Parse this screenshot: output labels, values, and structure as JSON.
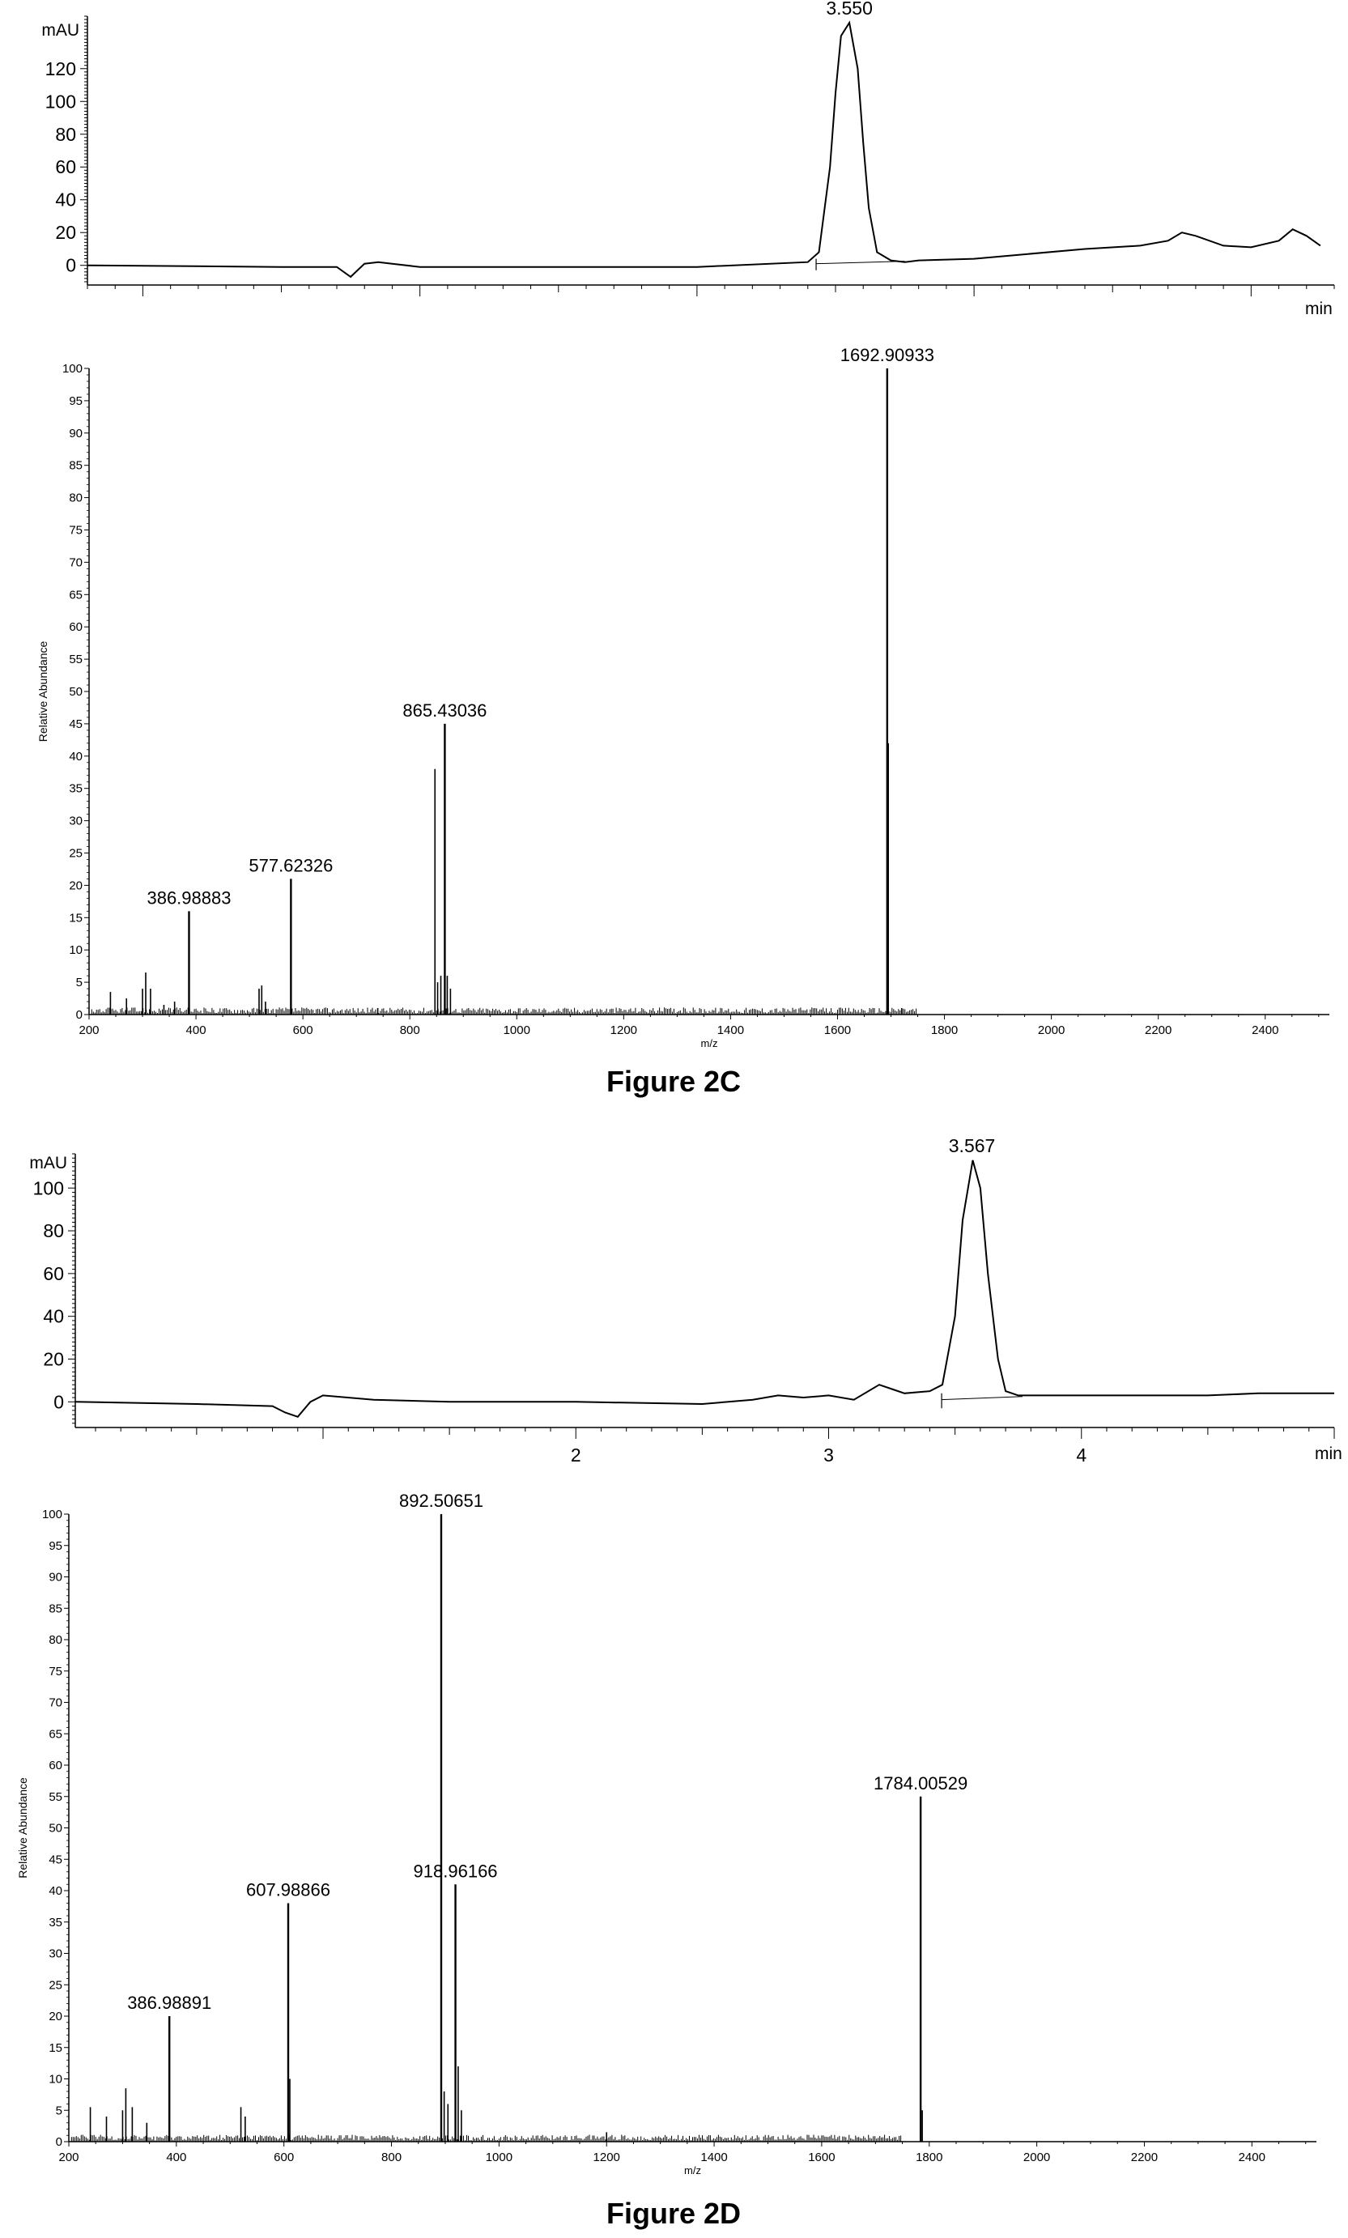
{
  "chart_data": [
    {
      "id": "panel-2c-chromatogram",
      "type": "line",
      "figure": "Figure 2C",
      "ylabel": "mAU",
      "xlabel": "min",
      "xlim": [
        0.8,
        5.3
      ],
      "ylim": [
        -12,
        152
      ],
      "yticks": [
        0,
        20,
        40,
        60,
        80,
        100,
        120
      ],
      "xticks_labeled": [],
      "grid": false,
      "x": [
        0.8,
        1.5,
        1.6,
        1.7,
        1.75,
        1.8,
        1.85,
        1.9,
        2.0,
        2.5,
        3.0,
        3.4,
        3.44,
        3.48,
        3.5,
        3.52,
        3.55,
        3.58,
        3.6,
        3.62,
        3.65,
        3.7,
        3.75,
        3.8,
        4.0,
        4.4,
        4.6,
        4.7,
        4.75,
        4.8,
        4.9,
        5.0,
        5.1,
        5.15,
        5.2,
        5.25
      ],
      "y": [
        0,
        -1,
        -1,
        -1,
        -7,
        1,
        2,
        1,
        -1,
        -1,
        -1,
        2,
        8,
        60,
        105,
        140,
        148,
        120,
        75,
        35,
        8,
        3,
        2,
        3,
        4,
        10,
        12,
        15,
        20,
        18,
        12,
        11,
        15,
        22,
        18,
        12
      ],
      "peak_labels": [
        {
          "x": 3.55,
          "label": "3.550"
        }
      ]
    },
    {
      "id": "panel-2c-ms",
      "type": "bar",
      "figure": "Figure 2C",
      "ylabel": "Relative Abundance",
      "xlabel": "m/z",
      "xlim": [
        200,
        2520
      ],
      "ylim": [
        0,
        100
      ],
      "yticks": [
        0,
        5,
        10,
        15,
        20,
        25,
        30,
        35,
        40,
        45,
        50,
        55,
        60,
        65,
        70,
        75,
        80,
        85,
        90,
        95,
        100
      ],
      "xticks": [
        200,
        400,
        600,
        800,
        1000,
        1200,
        1400,
        1600,
        1800,
        2000,
        2200,
        2400
      ],
      "grid": false,
      "peaks": [
        {
          "mz": 240,
          "intensity": 3.5
        },
        {
          "mz": 270,
          "intensity": 2.5
        },
        {
          "mz": 300,
          "intensity": 4
        },
        {
          "mz": 306,
          "intensity": 6.5
        },
        {
          "mz": 315,
          "intensity": 4
        },
        {
          "mz": 340,
          "intensity": 1.5
        },
        {
          "mz": 360,
          "intensity": 2
        },
        {
          "mz": 386.98883,
          "intensity": 16,
          "label": "386.98883"
        },
        {
          "mz": 518,
          "intensity": 4
        },
        {
          "mz": 523,
          "intensity": 4.5
        },
        {
          "mz": 530,
          "intensity": 2
        },
        {
          "mz": 577.62326,
          "intensity": 21,
          "label": "577.62326"
        },
        {
          "mz": 740,
          "intensity": 1
        },
        {
          "mz": 847,
          "intensity": 38
        },
        {
          "mz": 852,
          "intensity": 5
        },
        {
          "mz": 858,
          "intensity": 6
        },
        {
          "mz": 865.43036,
          "intensity": 45,
          "label": "865.43036"
        },
        {
          "mz": 870,
          "intensity": 6
        },
        {
          "mz": 876,
          "intensity": 4
        },
        {
          "mz": 1692.90933,
          "intensity": 100,
          "label": "1692.90933"
        },
        {
          "mz": 1695,
          "intensity": 42
        },
        {
          "mz": 1720,
          "intensity": 1
        }
      ]
    },
    {
      "id": "panel-2d-chromatogram",
      "type": "line",
      "figure": "Figure 2D",
      "ylabel": "mAU",
      "xlabel": "min",
      "xlim": [
        0.02,
        5.0
      ],
      "ylim": [
        -12,
        116
      ],
      "yticks": [
        0,
        20,
        40,
        60,
        80,
        100
      ],
      "xticks_labeled": [
        2,
        3,
        4
      ],
      "grid": false,
      "x": [
        0.02,
        0.5,
        0.8,
        0.85,
        0.9,
        0.95,
        1.0,
        1.2,
        1.5,
        2.0,
        2.5,
        2.7,
        2.8,
        2.9,
        3.0,
        3.1,
        3.2,
        3.25,
        3.3,
        3.4,
        3.45,
        3.5,
        3.53,
        3.57,
        3.6,
        3.63,
        3.67,
        3.7,
        3.75,
        3.8,
        4.2,
        4.5,
        4.7,
        5.0
      ],
      "y": [
        0,
        -1,
        -2,
        -5,
        -7,
        0,
        3,
        1,
        0,
        0,
        -1,
        1,
        3,
        2,
        3,
        1,
        8,
        6,
        4,
        5,
        8,
        40,
        85,
        113,
        100,
        60,
        20,
        5,
        3,
        3,
        3,
        3,
        4,
        4
      ],
      "peak_labels": [
        {
          "x": 3.567,
          "label": "3.567"
        }
      ]
    },
    {
      "id": "panel-2d-ms",
      "type": "bar",
      "figure": "Figure 2D",
      "ylabel": "Relative Abundance",
      "xlabel": "m/z",
      "xlim": [
        200,
        2520
      ],
      "ylim": [
        0,
        100
      ],
      "yticks": [
        0,
        5,
        10,
        15,
        20,
        25,
        30,
        35,
        40,
        45,
        50,
        55,
        60,
        65,
        70,
        75,
        80,
        85,
        90,
        95,
        100
      ],
      "xticks": [
        200,
        400,
        600,
        800,
        1000,
        1200,
        1400,
        1600,
        1800,
        2000,
        2200,
        2400
      ],
      "grid": false,
      "peaks": [
        {
          "mz": 240,
          "intensity": 5.5
        },
        {
          "mz": 270,
          "intensity": 4
        },
        {
          "mz": 300,
          "intensity": 5
        },
        {
          "mz": 306,
          "intensity": 8.5
        },
        {
          "mz": 318,
          "intensity": 5.5
        },
        {
          "mz": 345,
          "intensity": 3
        },
        {
          "mz": 386.98891,
          "intensity": 20,
          "label": "386.98891"
        },
        {
          "mz": 520,
          "intensity": 5.5
        },
        {
          "mz": 528,
          "intensity": 4
        },
        {
          "mz": 607.98866,
          "intensity": 38,
          "label": "607.98866"
        },
        {
          "mz": 611,
          "intensity": 10
        },
        {
          "mz": 892.50651,
          "intensity": 100,
          "label": "892.50651"
        },
        {
          "mz": 898,
          "intensity": 8
        },
        {
          "mz": 905,
          "intensity": 6
        },
        {
          "mz": 918.96166,
          "intensity": 41,
          "label": "918.96166"
        },
        {
          "mz": 924,
          "intensity": 12
        },
        {
          "mz": 930,
          "intensity": 5
        },
        {
          "mz": 1200,
          "intensity": 1.5
        },
        {
          "mz": 1784.00529,
          "intensity": 55,
          "label": "1784.00529"
        },
        {
          "mz": 1787,
          "intensity": 5
        }
      ]
    }
  ],
  "captions": {
    "figure_2c": "Figure 2C",
    "figure_2d": "Figure 2D"
  }
}
